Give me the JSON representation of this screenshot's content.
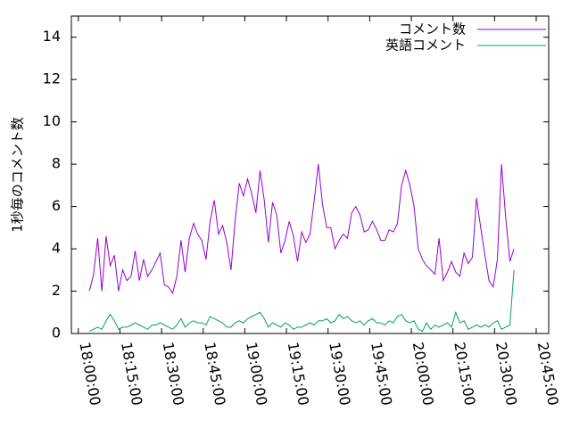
{
  "chart_data": {
    "type": "line",
    "ylabel": "1秒毎のコメント数",
    "x": [
      "18:04:00",
      "18:05:30",
      "18:07:00",
      "18:08:30",
      "18:10:00",
      "18:11:30",
      "18:13:00",
      "18:14:30",
      "18:16:00",
      "18:17:30",
      "18:19:00",
      "18:20:30",
      "18:22:00",
      "18:23:30",
      "18:25:00",
      "18:26:30",
      "18:28:00",
      "18:29:30",
      "18:31:00",
      "18:32:30",
      "18:34:00",
      "18:35:30",
      "18:37:00",
      "18:38:30",
      "18:40:00",
      "18:41:30",
      "18:43:00",
      "18:44:30",
      "18:46:00",
      "18:47:30",
      "18:49:00",
      "18:50:30",
      "18:52:00",
      "18:53:30",
      "18:55:00",
      "18:56:30",
      "18:58:00",
      "18:59:30",
      "19:01:00",
      "19:02:30",
      "19:04:00",
      "19:05:30",
      "19:07:00",
      "19:08:30",
      "19:10:00",
      "19:11:30",
      "19:13:00",
      "19:14:30",
      "19:16:00",
      "19:17:30",
      "19:19:00",
      "19:20:30",
      "19:22:00",
      "19:23:30",
      "19:25:00",
      "19:26:30",
      "19:28:00",
      "19:29:30",
      "19:31:00",
      "19:32:30",
      "19:34:00",
      "19:35:30",
      "19:37:00",
      "19:38:30",
      "19:40:00",
      "19:41:30",
      "19:43:00",
      "19:44:30",
      "19:46:00",
      "19:47:30",
      "19:49:00",
      "19:50:30",
      "19:52:00",
      "19:53:30",
      "19:55:00",
      "19:56:30",
      "19:58:00",
      "19:59:30",
      "20:01:00",
      "20:02:30",
      "20:04:00",
      "20:05:30",
      "20:07:00",
      "20:08:30",
      "20:10:00",
      "20:11:30",
      "20:13:00",
      "20:14:30",
      "20:16:00",
      "20:17:30",
      "20:19:00",
      "20:20:30",
      "20:22:00",
      "20:23:30",
      "20:25:00",
      "20:26:30",
      "20:28:00",
      "20:29:30",
      "20:31:00",
      "20:32:30",
      "20:34:00",
      "20:35:30",
      "20:37:00"
    ],
    "series": [
      {
        "name": "コメント数",
        "color": "#9400d3",
        "values": [
          2.0,
          2.8,
          4.5,
          2.0,
          4.6,
          3.2,
          3.7,
          2.0,
          3.0,
          2.5,
          2.7,
          3.9,
          2.5,
          3.5,
          2.7,
          3.0,
          3.4,
          3.8,
          2.3,
          2.2,
          1.9,
          2.7,
          4.4,
          2.9,
          4.5,
          5.2,
          4.7,
          4.4,
          3.5,
          5.3,
          6.3,
          4.7,
          5.1,
          4.3,
          3.0,
          5.3,
          7.1,
          6.5,
          7.3,
          6.6,
          5.7,
          7.7,
          6.3,
          4.3,
          6.2,
          5.6,
          3.8,
          4.4,
          5.3,
          4.6,
          3.4,
          4.8,
          4.3,
          4.7,
          6.3,
          8.0,
          6.1,
          5.0,
          5.0,
          4.0,
          4.4,
          4.7,
          4.5,
          5.7,
          6.0,
          5.6,
          4.8,
          4.9,
          5.3,
          4.9,
          4.4,
          4.4,
          4.9,
          4.8,
          5.2,
          7.0,
          7.7,
          7.0,
          6.0,
          4.0,
          3.5,
          3.2,
          3.0,
          2.8,
          4.5,
          2.5,
          2.9,
          3.4,
          2.9,
          2.7,
          3.8,
          3.3,
          3.6,
          6.4,
          5.0,
          3.7,
          2.5,
          2.2,
          3.5,
          8.0,
          5.5,
          3.4,
          4.0
        ]
      },
      {
        "name": "英語コメント",
        "color": "#009e73",
        "values": [
          0.1,
          0.2,
          0.3,
          0.2,
          0.6,
          0.9,
          0.6,
          0.2,
          0.3,
          0.3,
          0.4,
          0.5,
          0.4,
          0.3,
          0.2,
          0.4,
          0.4,
          0.5,
          0.4,
          0.3,
          0.2,
          0.4,
          0.7,
          0.3,
          0.5,
          0.6,
          0.5,
          0.5,
          0.4,
          0.8,
          0.7,
          0.6,
          0.5,
          0.3,
          0.3,
          0.5,
          0.6,
          0.5,
          0.7,
          0.8,
          0.9,
          1.0,
          0.7,
          0.3,
          0.5,
          0.4,
          0.3,
          0.5,
          0.4,
          0.2,
          0.3,
          0.3,
          0.4,
          0.5,
          0.4,
          0.6,
          0.6,
          0.7,
          0.5,
          0.6,
          0.9,
          0.7,
          0.8,
          0.6,
          0.5,
          0.6,
          0.4,
          0.6,
          0.7,
          0.5,
          0.5,
          0.4,
          0.6,
          0.5,
          0.8,
          0.9,
          0.6,
          0.5,
          0.6,
          0.2,
          0.1,
          0.5,
          0.2,
          0.4,
          0.3,
          0.4,
          0.5,
          0.3,
          1.0,
          0.5,
          0.6,
          0.2,
          0.3,
          0.4,
          0.3,
          0.4,
          0.3,
          0.5,
          0.6,
          0.2,
          0.3,
          0.4,
          3.0
        ]
      }
    ],
    "xlim": [
      "17:57:30",
      "20:49:30"
    ],
    "xticks": [
      "18:00:00",
      "18:15:00",
      "18:30:00",
      "18:45:00",
      "19:00:00",
      "19:15:00",
      "19:30:00",
      "19:45:00",
      "20:00:00",
      "20:15:00",
      "20:30:00",
      "20:45:00"
    ],
    "ylim": [
      0,
      15
    ],
    "yticks": [
      0,
      2,
      4,
      6,
      8,
      10,
      12,
      14
    ],
    "legend": "top-right",
    "grid": false
  }
}
